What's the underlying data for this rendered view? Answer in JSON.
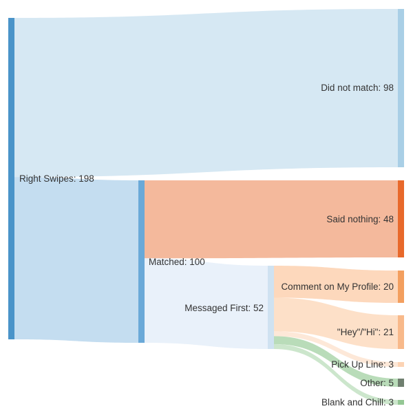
{
  "diagram": {
    "type": "sankey",
    "nodes": [
      {
        "id": "right_swipes",
        "label": "Right Swipes: 198",
        "color": "#4a94c9"
      },
      {
        "id": "did_not_match",
        "label": "Did not match: 98",
        "color": "#a9cfe6"
      },
      {
        "id": "matched",
        "label": "Matched: 100",
        "color": "#6aa9d8"
      },
      {
        "id": "said_nothing",
        "label": "Said nothing: 48",
        "color": "#e8692b"
      },
      {
        "id": "messaged_first",
        "label": "Messaged First: 52",
        "color": "#cfe2f1"
      },
      {
        "id": "comment_profile",
        "label": "Comment on My Profile: 20",
        "color": "#f39f5f"
      },
      {
        "id": "hey_hi",
        "label": "\"Hey\"/\"Hi\": 21",
        "color": "#f8b98a"
      },
      {
        "id": "pick_up_line",
        "label": "Pick Up Line: 3",
        "color": "#fcd3b4"
      },
      {
        "id": "other",
        "label": "Other: 5",
        "color": "#6f7f6f"
      },
      {
        "id": "blank_chill",
        "label": "Blank and Chill: 3",
        "color": "#94c794"
      }
    ],
    "links": [
      {
        "source": "right_swipes",
        "target": "did_not_match",
        "value": 98,
        "color": "#d6e8f3"
      },
      {
        "source": "right_swipes",
        "target": "matched",
        "value": 100,
        "color": "#c4ddf0"
      },
      {
        "source": "matched",
        "target": "said_nothing",
        "value": 48,
        "color": "#f4b99c"
      },
      {
        "source": "matched",
        "target": "messaged_first",
        "value": 52,
        "color": "#e9f1fa"
      },
      {
        "source": "messaged_first",
        "target": "comment_profile",
        "value": 20,
        "color": "#fdd8bc"
      },
      {
        "source": "messaged_first",
        "target": "hey_hi",
        "value": 21,
        "color": "#fde0c8"
      },
      {
        "source": "messaged_first",
        "target": "pick_up_line",
        "value": 3,
        "color": "#fde8d8"
      },
      {
        "source": "messaged_first",
        "target": "other",
        "value": 5,
        "color": "#b9dcb9"
      },
      {
        "source": "messaged_first",
        "target": "blank_chill",
        "value": 3,
        "color": "#cce6cc"
      }
    ]
  }
}
